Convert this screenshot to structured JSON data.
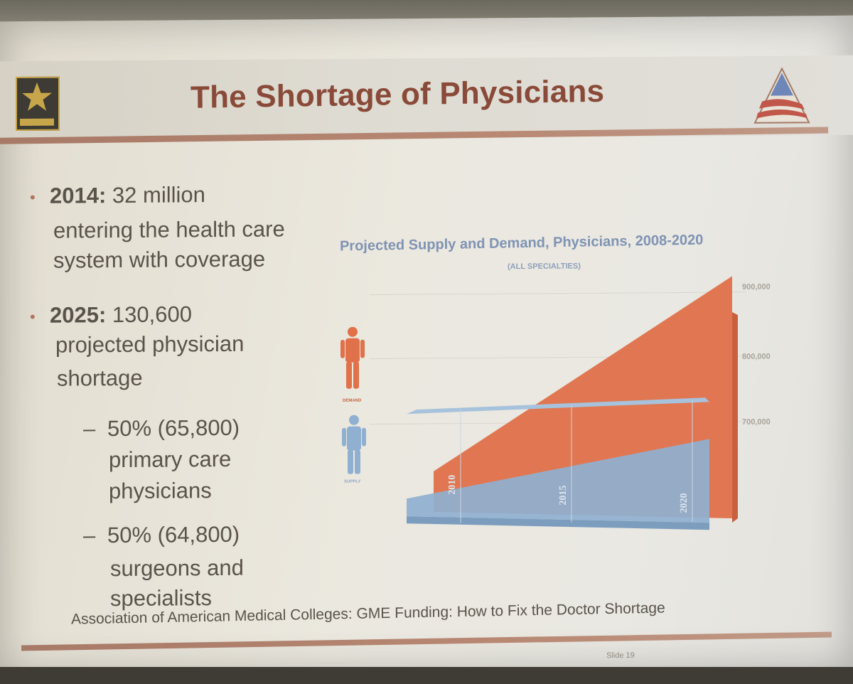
{
  "slide": {
    "title": "The Shortage of Physicians",
    "logos": [
      "army-star-logo",
      "flag-pyramid-logo"
    ],
    "bullets": [
      {
        "year": "2014:",
        "lines": [
          " 32 million",
          "entering the health care",
          "system with coverage"
        ]
      },
      {
        "year": "2025:",
        "lines": [
          " 130,600",
          "projected physician",
          "shortage"
        ],
        "sub": [
          {
            "lines": [
              "50% (65,800)",
              "primary care",
              "physicians"
            ]
          },
          {
            "lines": [
              "50% (64,800)",
              "surgeons and",
              "specialists"
            ]
          }
        ]
      }
    ],
    "source": "Association of American Medical Colleges: GME Funding: How to Fix the Doctor Shortage",
    "slide_number": "Slide 19"
  },
  "chart_data": {
    "type": "area",
    "title": "Projected Supply and Demand, Physicians, 2008-2020",
    "subtitle": "(ALL SPECIALTIES)",
    "x": [
      2008,
      2020
    ],
    "x_tick_labels": [
      "2010",
      "2015",
      "2020"
    ],
    "y_tick_labels": [
      "900,000",
      "800,000",
      "700,000"
    ],
    "ylim": [
      600000,
      900000
    ],
    "series": [
      {
        "name": "DEMAND",
        "x": [
          2008,
          2020
        ],
        "values": [
          700000,
          860000
        ],
        "color": "#e0714a"
      },
      {
        "name": "SUPPLY",
        "x": [
          2008,
          2020
        ],
        "values": [
          700000,
          735000
        ],
        "color": "#8fb0d0"
      }
    ],
    "legend_icons": [
      "demand-person-icon",
      "supply-person-icon"
    ]
  },
  "colors": {
    "title": "#8a4a39",
    "accent_rule": "#b0735d",
    "demand": "#e0714a",
    "supply": "#8fb0d0",
    "chart_title": "#7f93b3"
  }
}
